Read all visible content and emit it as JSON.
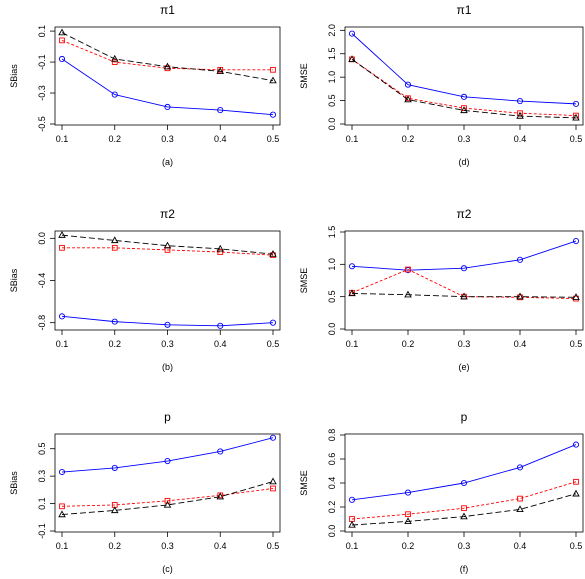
{
  "figure": {
    "background": "#ffffff"
  },
  "styles": {
    "blue": {
      "color": "#0000ff",
      "dash": "",
      "marker": "circle"
    },
    "red": {
      "color": "#ff0000",
      "dash": "3,2",
      "marker": "square"
    },
    "black": {
      "color": "#000000",
      "dash": "6,3",
      "marker": "triangle"
    }
  },
  "chart_data": [
    {
      "id": "a",
      "type": "line",
      "title": "π1",
      "xlabel": "",
      "ylabel": "SBias",
      "caption": "(a)",
      "x": [
        0.1,
        0.2,
        0.3,
        0.4,
        0.5
      ],
      "x_tick_labels": [
        "0.1",
        "0.2",
        "0.3",
        "0.4",
        "0.5"
      ],
      "ylim": [
        -0.5,
        0.12
      ],
      "yticks": [
        0.1,
        -0.1,
        -0.3,
        -0.5
      ],
      "y_tick_labels": [
        "0.1",
        "-0.1",
        "-0.3",
        "-0.5"
      ],
      "series": [
        {
          "style": "blue",
          "values": [
            -0.08,
            -0.31,
            -0.39,
            -0.41,
            -0.44
          ]
        },
        {
          "style": "red",
          "values": [
            0.04,
            -0.1,
            -0.14,
            -0.15,
            -0.15
          ]
        },
        {
          "style": "black",
          "values": [
            0.09,
            -0.08,
            -0.13,
            -0.16,
            -0.22
          ]
        }
      ]
    },
    {
      "id": "d",
      "type": "line",
      "title": "π1",
      "xlabel": "",
      "ylabel": "SMSE",
      "caption": "(d)",
      "x": [
        0.1,
        0.2,
        0.3,
        0.4,
        0.5
      ],
      "x_tick_labels": [
        "0.1",
        "0.2",
        "0.3",
        "0.4",
        "0.5"
      ],
      "ylim": [
        0.0,
        2.05
      ],
      "yticks": [
        0.0,
        0.5,
        1.0,
        1.5,
        2.0
      ],
      "y_tick_labels": [
        "0.0",
        "0.5",
        "1.0",
        "1.5",
        "2.0"
      ],
      "series": [
        {
          "style": "blue",
          "values": [
            1.93,
            0.84,
            0.58,
            0.49,
            0.43
          ]
        },
        {
          "style": "red",
          "values": [
            1.38,
            0.55,
            0.34,
            0.23,
            0.18
          ]
        },
        {
          "style": "black",
          "values": [
            1.38,
            0.52,
            0.29,
            0.17,
            0.13
          ]
        }
      ]
    },
    {
      "id": "b",
      "type": "line",
      "title": "π2",
      "xlabel": "",
      "ylabel": "SBias",
      "caption": "(b)",
      "x": [
        0.1,
        0.2,
        0.3,
        0.4,
        0.5
      ],
      "x_tick_labels": [
        "0.1",
        "0.2",
        "0.3",
        "0.4",
        "0.5"
      ],
      "ylim": [
        -0.86,
        0.06
      ],
      "yticks": [
        0.0,
        -0.4,
        -0.8
      ],
      "y_tick_labels": [
        "0.0",
        "-0.4",
        "-0.8"
      ],
      "series": [
        {
          "style": "blue",
          "values": [
            -0.74,
            -0.79,
            -0.82,
            -0.83,
            -0.8
          ]
        },
        {
          "style": "red",
          "values": [
            -0.09,
            -0.09,
            -0.11,
            -0.13,
            -0.16
          ]
        },
        {
          "style": "black",
          "values": [
            0.03,
            -0.02,
            -0.07,
            -0.1,
            -0.15
          ]
        }
      ]
    },
    {
      "id": "e",
      "type": "line",
      "title": "π2",
      "xlabel": "",
      "ylabel": "SMSE",
      "caption": "(e)",
      "x": [
        0.1,
        0.2,
        0.3,
        0.4,
        0.5
      ],
      "x_tick_labels": [
        "0.1",
        "0.2",
        "0.3",
        "0.4",
        "0.5"
      ],
      "ylim": [
        0.0,
        1.5
      ],
      "yticks": [
        0.0,
        0.5,
        1.0,
        1.5
      ],
      "y_tick_labels": [
        "0.0",
        "0.5",
        "1.0",
        "1.5"
      ],
      "series": [
        {
          "style": "blue",
          "values": [
            0.97,
            0.91,
            0.94,
            1.07,
            1.36
          ]
        },
        {
          "style": "red",
          "values": [
            0.56,
            0.92,
            0.5,
            0.49,
            0.47
          ]
        },
        {
          "style": "black",
          "values": [
            0.55,
            0.53,
            0.5,
            0.5,
            0.49
          ]
        }
      ]
    },
    {
      "id": "c",
      "type": "line",
      "title": "p",
      "xlabel": "",
      "ylabel": "SBias",
      "caption": "(c)",
      "x": [
        0.1,
        0.2,
        0.3,
        0.4,
        0.5
      ],
      "x_tick_labels": [
        "0.1",
        "0.2",
        "0.3",
        "0.4",
        "0.5"
      ],
      "ylim": [
        -0.1,
        0.6
      ],
      "yticks": [
        -0.1,
        0.1,
        0.3,
        0.5
      ],
      "y_tick_labels": [
        "-0.1",
        "0.1",
        "0.3",
        "0.5"
      ],
      "series": [
        {
          "style": "blue",
          "values": [
            0.33,
            0.36,
            0.41,
            0.48,
            0.58
          ]
        },
        {
          "style": "red",
          "values": [
            0.08,
            0.09,
            0.12,
            0.16,
            0.21
          ]
        },
        {
          "style": "black",
          "values": [
            0.02,
            0.05,
            0.09,
            0.15,
            0.26
          ]
        }
      ]
    },
    {
      "id": "f",
      "type": "line",
      "title": "p",
      "xlabel": "",
      "ylabel": "SMSE",
      "caption": "(f)",
      "x": [
        0.1,
        0.2,
        0.3,
        0.4,
        0.5
      ],
      "x_tick_labels": [
        "0.1",
        "0.2",
        "0.3",
        "0.4",
        "0.5"
      ],
      "ylim": [
        0.0,
        0.8
      ],
      "yticks": [
        0.0,
        0.2,
        0.4,
        0.6,
        0.8
      ],
      "y_tick_labels": [
        "0.0",
        "0.2",
        "0.4",
        "0.6",
        "0.8"
      ],
      "series": [
        {
          "style": "blue",
          "values": [
            0.26,
            0.32,
            0.4,
            0.53,
            0.72
          ]
        },
        {
          "style": "red",
          "values": [
            0.1,
            0.14,
            0.19,
            0.27,
            0.41
          ]
        },
        {
          "style": "black",
          "values": [
            0.05,
            0.08,
            0.12,
            0.18,
            0.31
          ]
        }
      ]
    }
  ]
}
